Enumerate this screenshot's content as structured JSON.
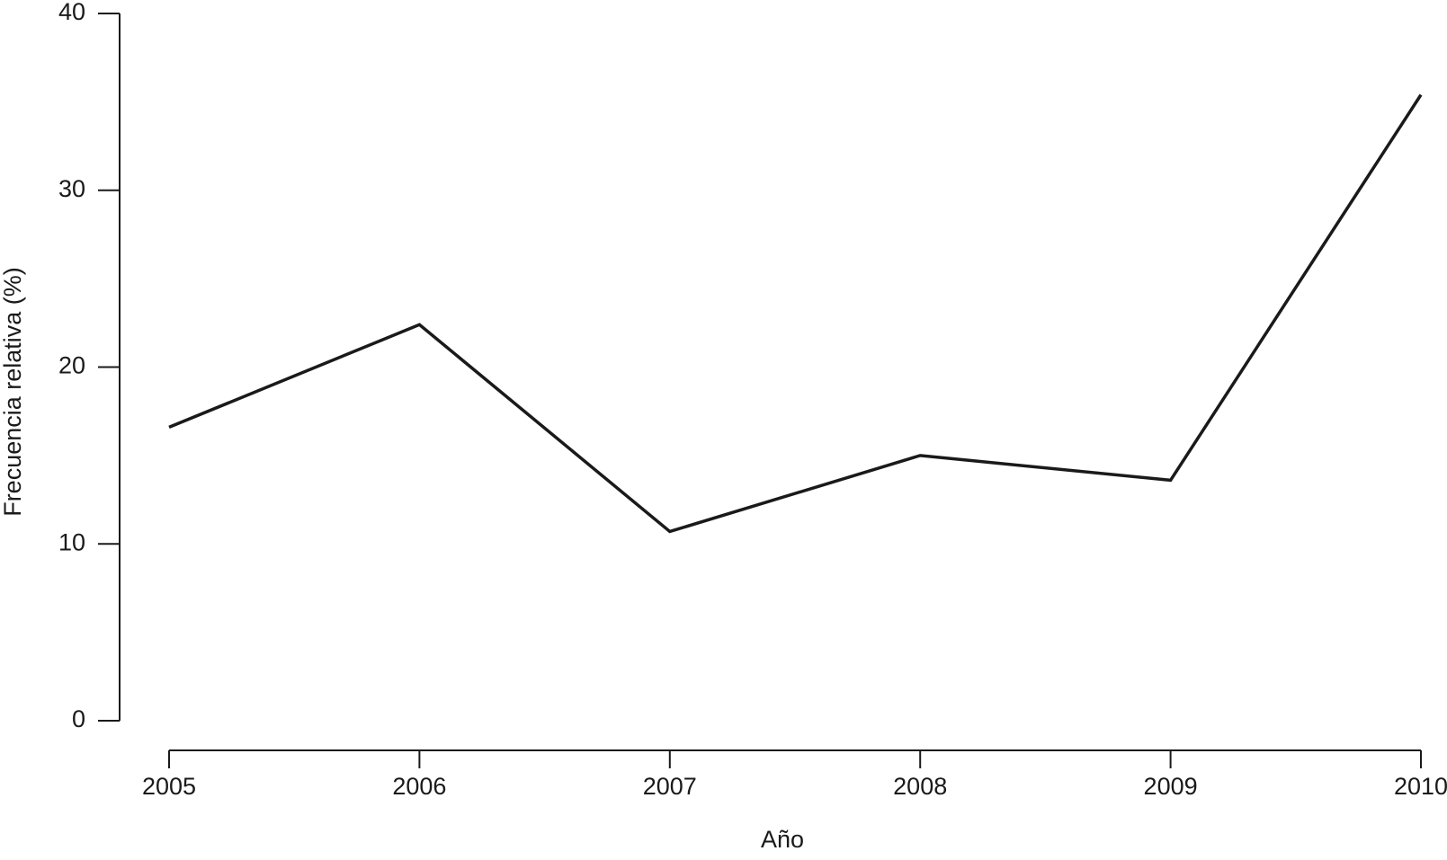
{
  "chart_data": {
    "type": "line",
    "x_label": "Año",
    "y_label": "Frecuencia relativa (%)",
    "x": [
      2005,
      2006,
      2007,
      2008,
      2009,
      2010
    ],
    "series": [
      {
        "color": "#1a1a1a",
        "values": [
          16.6,
          22.4,
          10.7,
          15.0,
          13.6,
          35.4
        ]
      }
    ],
    "xlim": [
      2005,
      2010
    ],
    "xticks": [
      2005,
      2006,
      2007,
      2008,
      2009,
      2010
    ],
    "ylim": [
      0,
      40
    ],
    "yticks": [
      0,
      10,
      20,
      30,
      40
    ]
  }
}
